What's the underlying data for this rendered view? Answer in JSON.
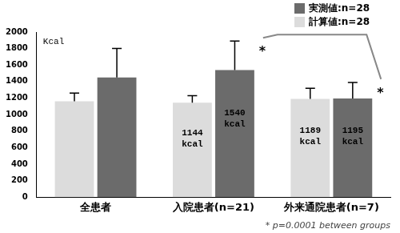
{
  "chart_data": {
    "type": "bar",
    "ylabel": "Kcal",
    "categories": [
      "全患者",
      "入院患者(n=21)",
      "外来通院患者(n=7)"
    ],
    "series": [
      {
        "name": "計算値:n=28",
        "color": "#dcdcdc",
        "values": [
          1160,
          1144,
          1189
        ],
        "errors": [
          100,
          86,
          130
        ],
        "value_labels": [
          null,
          "1144 kcal",
          "1189 kcal"
        ]
      },
      {
        "name": "実測値:n=28",
        "color": "#6b6b6b",
        "values": [
          1450,
          1540,
          1195
        ],
        "errors": [
          350,
          350,
          195
        ],
        "value_labels": [
          null,
          "1540 kcal",
          "1195 kcal"
        ]
      }
    ],
    "ylim": [
      0,
      2000
    ],
    "yticks": [
      0,
      200,
      400,
      600,
      800,
      1000,
      1200,
      1400,
      1600,
      1800,
      2000
    ],
    "grid": false,
    "legend": "top right",
    "data_labels": true,
    "annotations": [
      {
        "text": "*",
        "category": "入院患者(n=21)",
        "series": "実測値:n=28"
      },
      {
        "text": "*",
        "category": "外来通院患者(n=7)",
        "series": "実測値:n=28"
      }
    ],
    "footnote": "* p=0.0001 between groups"
  }
}
